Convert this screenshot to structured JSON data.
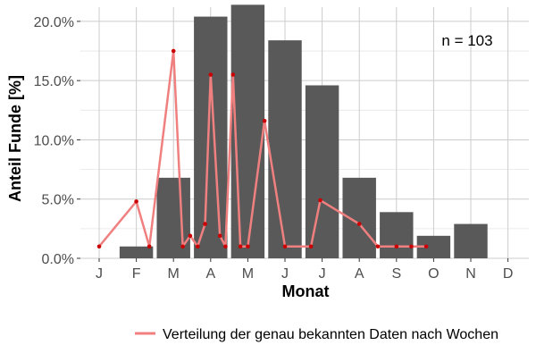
{
  "chart_data": {
    "type": "bar",
    "xlabel": "Monat",
    "ylabel": "Anteil Funde [%]",
    "annotation": "n = 103",
    "x_tick_labels": [
      "J",
      "F",
      "M",
      "A",
      "M",
      "J",
      "J",
      "A",
      "S",
      "O",
      "N",
      "D"
    ],
    "y_ticks": [
      0,
      5,
      10,
      15,
      20
    ],
    "y_tick_labels": [
      "0.0%",
      "5.0%",
      "10.0%",
      "15.0%",
      "20.0%"
    ],
    "ylim": [
      0,
      21.2
    ],
    "bars": {
      "color": "#595959",
      "values": [
        0,
        1.0,
        6.8,
        20.4,
        21.4,
        18.4,
        14.6,
        6.8,
        3.9,
        1.9,
        2.9,
        0
      ]
    },
    "weekly_series": {
      "name": "Verteilung der genau bekannten Daten nach Wochen",
      "line_color": "#f08080",
      "point_color": "#cc0000",
      "x_months": [
        1.0,
        2.0,
        2.35,
        3.0,
        3.25,
        3.45,
        3.65,
        3.85,
        4.0,
        4.25,
        4.4,
        4.6,
        4.8,
        5.0,
        5.45,
        6.0,
        6.7,
        6.95,
        8.0,
        8.5,
        9.0,
        9.4,
        9.8
      ],
      "values": [
        1.0,
        4.8,
        1.0,
        17.5,
        1.0,
        1.9,
        1.0,
        2.9,
        15.5,
        1.9,
        1.0,
        15.5,
        1.0,
        1.0,
        11.6,
        1.0,
        1.0,
        4.9,
        2.9,
        1.0,
        1.0,
        1.0,
        1.0
      ]
    },
    "grid": true,
    "legend_position": "bottom"
  }
}
